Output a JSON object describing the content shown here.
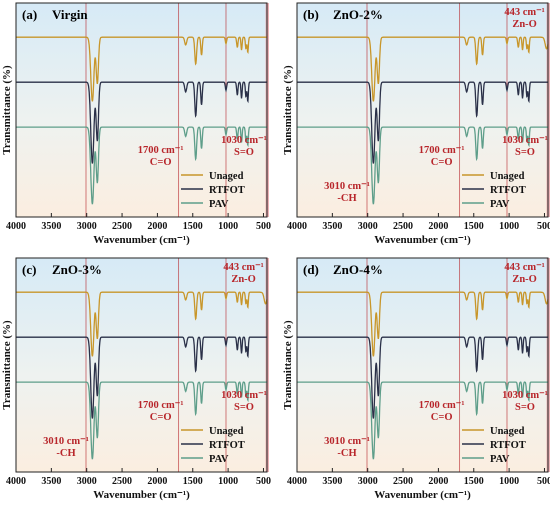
{
  "colors": {
    "unaged": "#c8962a",
    "rtfot": "#2a3048",
    "pav": "#5e9e8a",
    "annotation": "#b8262b",
    "bg_top": "#d6eaf6",
    "bg_bottom": "#fbeee0",
    "zno_band": "#e79a9f"
  },
  "chart_data": [
    {
      "type": "line",
      "panel_label": "(a)",
      "sample": "Virgin",
      "xlabel": "Wavenumber (cm⁻¹)",
      "ylabel": "Transmittance (%)",
      "xlim": [
        4000,
        450
      ],
      "x_ticks": [
        "4000",
        "3500",
        "3000",
        "2500",
        "2000",
        "1500",
        "1000",
        "500"
      ],
      "series": [
        {
          "name": "Unaged",
          "color_key": "unaged"
        },
        {
          "name": "RTFOT",
          "color_key": "rtfot"
        },
        {
          "name": "PAV",
          "color_key": "pav"
        }
      ],
      "annotations": [
        {
          "line1": "1700 cm⁻¹",
          "line2": "C=O"
        },
        {
          "line1": "1030 cm⁻¹",
          "line2": "S=O"
        }
      ]
    },
    {
      "type": "line",
      "panel_label": "(b)",
      "sample": "ZnO-2%",
      "xlabel": "Wavenumber (cm⁻¹)",
      "ylabel": "Transmittance (%)",
      "xlim": [
        4000,
        450
      ],
      "x_ticks": [
        "4000",
        "3500",
        "3000",
        "2500",
        "2000",
        "1500",
        "1000",
        "500"
      ],
      "series": [
        {
          "name": "Unaged",
          "color_key": "unaged"
        },
        {
          "name": "RTFOT",
          "color_key": "rtfot"
        },
        {
          "name": "PAV",
          "color_key": "pav"
        }
      ],
      "annotations": [
        {
          "line1": "443 cm⁻¹",
          "line2": "Zn-O"
        },
        {
          "line1": "1700 cm⁻¹",
          "line2": "C=O"
        },
        {
          "line1": "1030 cm⁻¹",
          "line2": "S=O"
        },
        {
          "line1": "3010 cm⁻¹",
          "line2": "-CH"
        }
      ]
    },
    {
      "type": "line",
      "panel_label": "(c)",
      "sample": "ZnO-3%",
      "xlabel": "Wavenumber (cm⁻¹)",
      "ylabel": "Transmittance (%)",
      "xlim": [
        4000,
        450
      ],
      "x_ticks": [
        "4000",
        "3500",
        "3000",
        "2500",
        "2000",
        "1500",
        "1000",
        "500"
      ],
      "series": [
        {
          "name": "Unaged",
          "color_key": "unaged"
        },
        {
          "name": "RTFOT",
          "color_key": "rtfot"
        },
        {
          "name": "PAV",
          "color_key": "pav"
        }
      ],
      "annotations": [
        {
          "line1": "443 cm⁻¹",
          "line2": "Zn-O"
        },
        {
          "line1": "1700 cm⁻¹",
          "line2": "C=O"
        },
        {
          "line1": "1030 cm⁻¹",
          "line2": "S=O"
        },
        {
          "line1": "3010 cm⁻¹",
          "line2": "-CH"
        }
      ]
    },
    {
      "type": "line",
      "panel_label": "(d)",
      "sample": "ZnO-4%",
      "xlabel": "Wavenumber (cm⁻¹)",
      "ylabel": "Transmittance (%)",
      "xlim": [
        4000,
        450
      ],
      "x_ticks": [
        "4000",
        "3500",
        "3000",
        "2500",
        "2000",
        "1500",
        "1000",
        "500"
      ],
      "series": [
        {
          "name": "Unaged",
          "color_key": "unaged"
        },
        {
          "name": "RTFOT",
          "color_key": "rtfot"
        },
        {
          "name": "PAV",
          "color_key": "pav"
        }
      ],
      "annotations": [
        {
          "line1": "443 cm⁻¹",
          "line2": "Zn-O"
        },
        {
          "line1": "1700 cm⁻¹",
          "line2": "C=O"
        },
        {
          "line1": "1030 cm⁻¹",
          "line2": "S=O"
        },
        {
          "line1": "3010 cm⁻¹",
          "line2": "-CH"
        }
      ]
    }
  ]
}
